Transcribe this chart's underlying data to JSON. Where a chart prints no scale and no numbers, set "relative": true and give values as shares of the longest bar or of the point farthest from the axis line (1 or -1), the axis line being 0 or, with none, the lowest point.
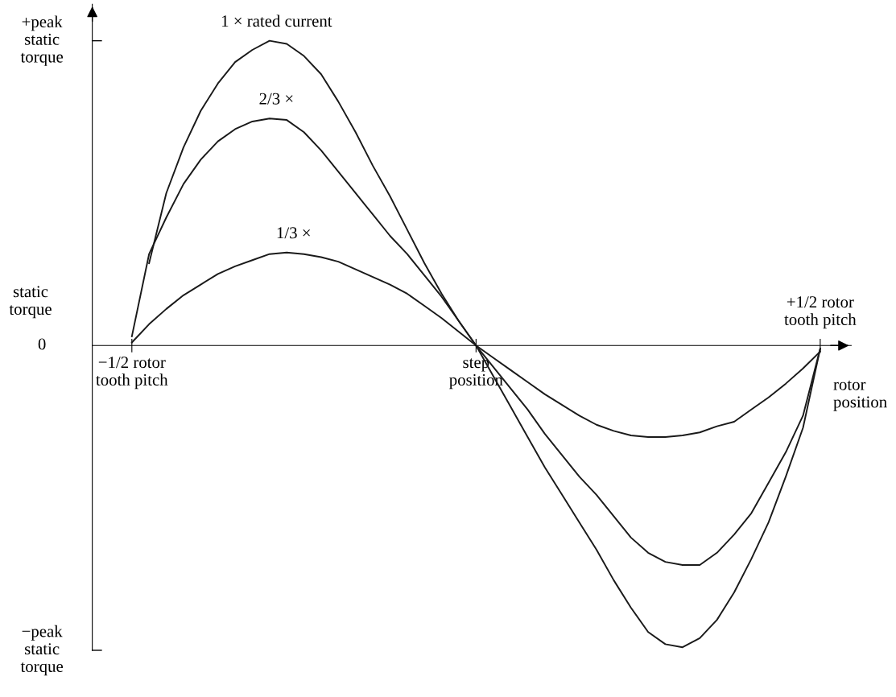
{
  "chart_data": {
    "type": "line",
    "relative": true,
    "xlabel": "rotor position",
    "ylabel": "static torque",
    "categories": [
      "−1/2 rotor\ntooth pitch",
      null,
      null,
      null,
      null,
      null,
      null,
      null,
      null,
      null,
      null,
      null,
      null,
      null,
      null,
      null,
      null,
      null,
      null,
      null,
      "step\nposition",
      null,
      null,
      null,
      null,
      null,
      null,
      null,
      null,
      null,
      null,
      null,
      null,
      null,
      null,
      null,
      null,
      null,
      null,
      null,
      "+1/2 rotor\ntooth pitch"
    ],
    "annotations": [
      "+peak\nstatic\ntorque",
      "0",
      "−peak\nstatic\ntorque"
    ],
    "grid": false,
    "legend": false,
    "marker": "none",
    "line_style": "solid",
    "series": [
      {
        "name": "1 × rated current",
        "color": "#1a1a1a",
        "values": [
          null,
          0.27,
          0.5,
          0.65,
          0.77,
          0.86,
          0.93,
          0.97,
          1.0,
          0.99,
          0.95,
          0.89,
          0.8,
          0.7,
          0.59,
          0.49,
          0.38,
          0.27,
          0.17,
          0.08,
          0,
          -0.1,
          -0.2,
          -0.3,
          -0.4,
          -0.49,
          -0.58,
          -0.67,
          -0.77,
          -0.86,
          -0.94,
          -0.98,
          -0.99,
          -0.96,
          -0.9,
          -0.81,
          -0.7,
          -0.58,
          -0.43,
          -0.27,
          -0.01
        ]
      },
      {
        "name": "2/3 ×",
        "color": "#1a1a1a",
        "values": [
          0.03,
          0.3,
          0.42,
          0.53,
          0.61,
          0.67,
          0.71,
          0.735,
          0.745,
          0.74,
          0.7,
          0.64,
          0.57,
          0.5,
          0.43,
          0.36,
          0.3,
          0.23,
          0.16,
          0.08,
          0,
          -0.07,
          -0.14,
          -0.21,
          -0.29,
          -0.36,
          -0.43,
          -0.49,
          -0.56,
          -0.63,
          -0.68,
          -0.71,
          -0.72,
          -0.72,
          -0.68,
          -0.62,
          -0.55,
          -0.45,
          -0.35,
          -0.23,
          -0.01
        ]
      },
      {
        "name": "1/3 ×",
        "color": "#1a1a1a",
        "values": [
          0.01,
          0.07,
          0.12,
          0.165,
          0.2,
          0.235,
          0.26,
          0.28,
          0.3,
          0.305,
          0.3,
          0.29,
          0.275,
          0.25,
          0.225,
          0.2,
          0.17,
          0.13,
          0.09,
          0.045,
          0,
          -0.04,
          -0.08,
          -0.12,
          -0.16,
          -0.195,
          -0.23,
          -0.26,
          -0.28,
          -0.295,
          -0.3,
          -0.3,
          -0.295,
          -0.285,
          -0.265,
          -0.25,
          -0.21,
          -0.17,
          -0.125,
          -0.075,
          -0.02
        ]
      }
    ]
  }
}
